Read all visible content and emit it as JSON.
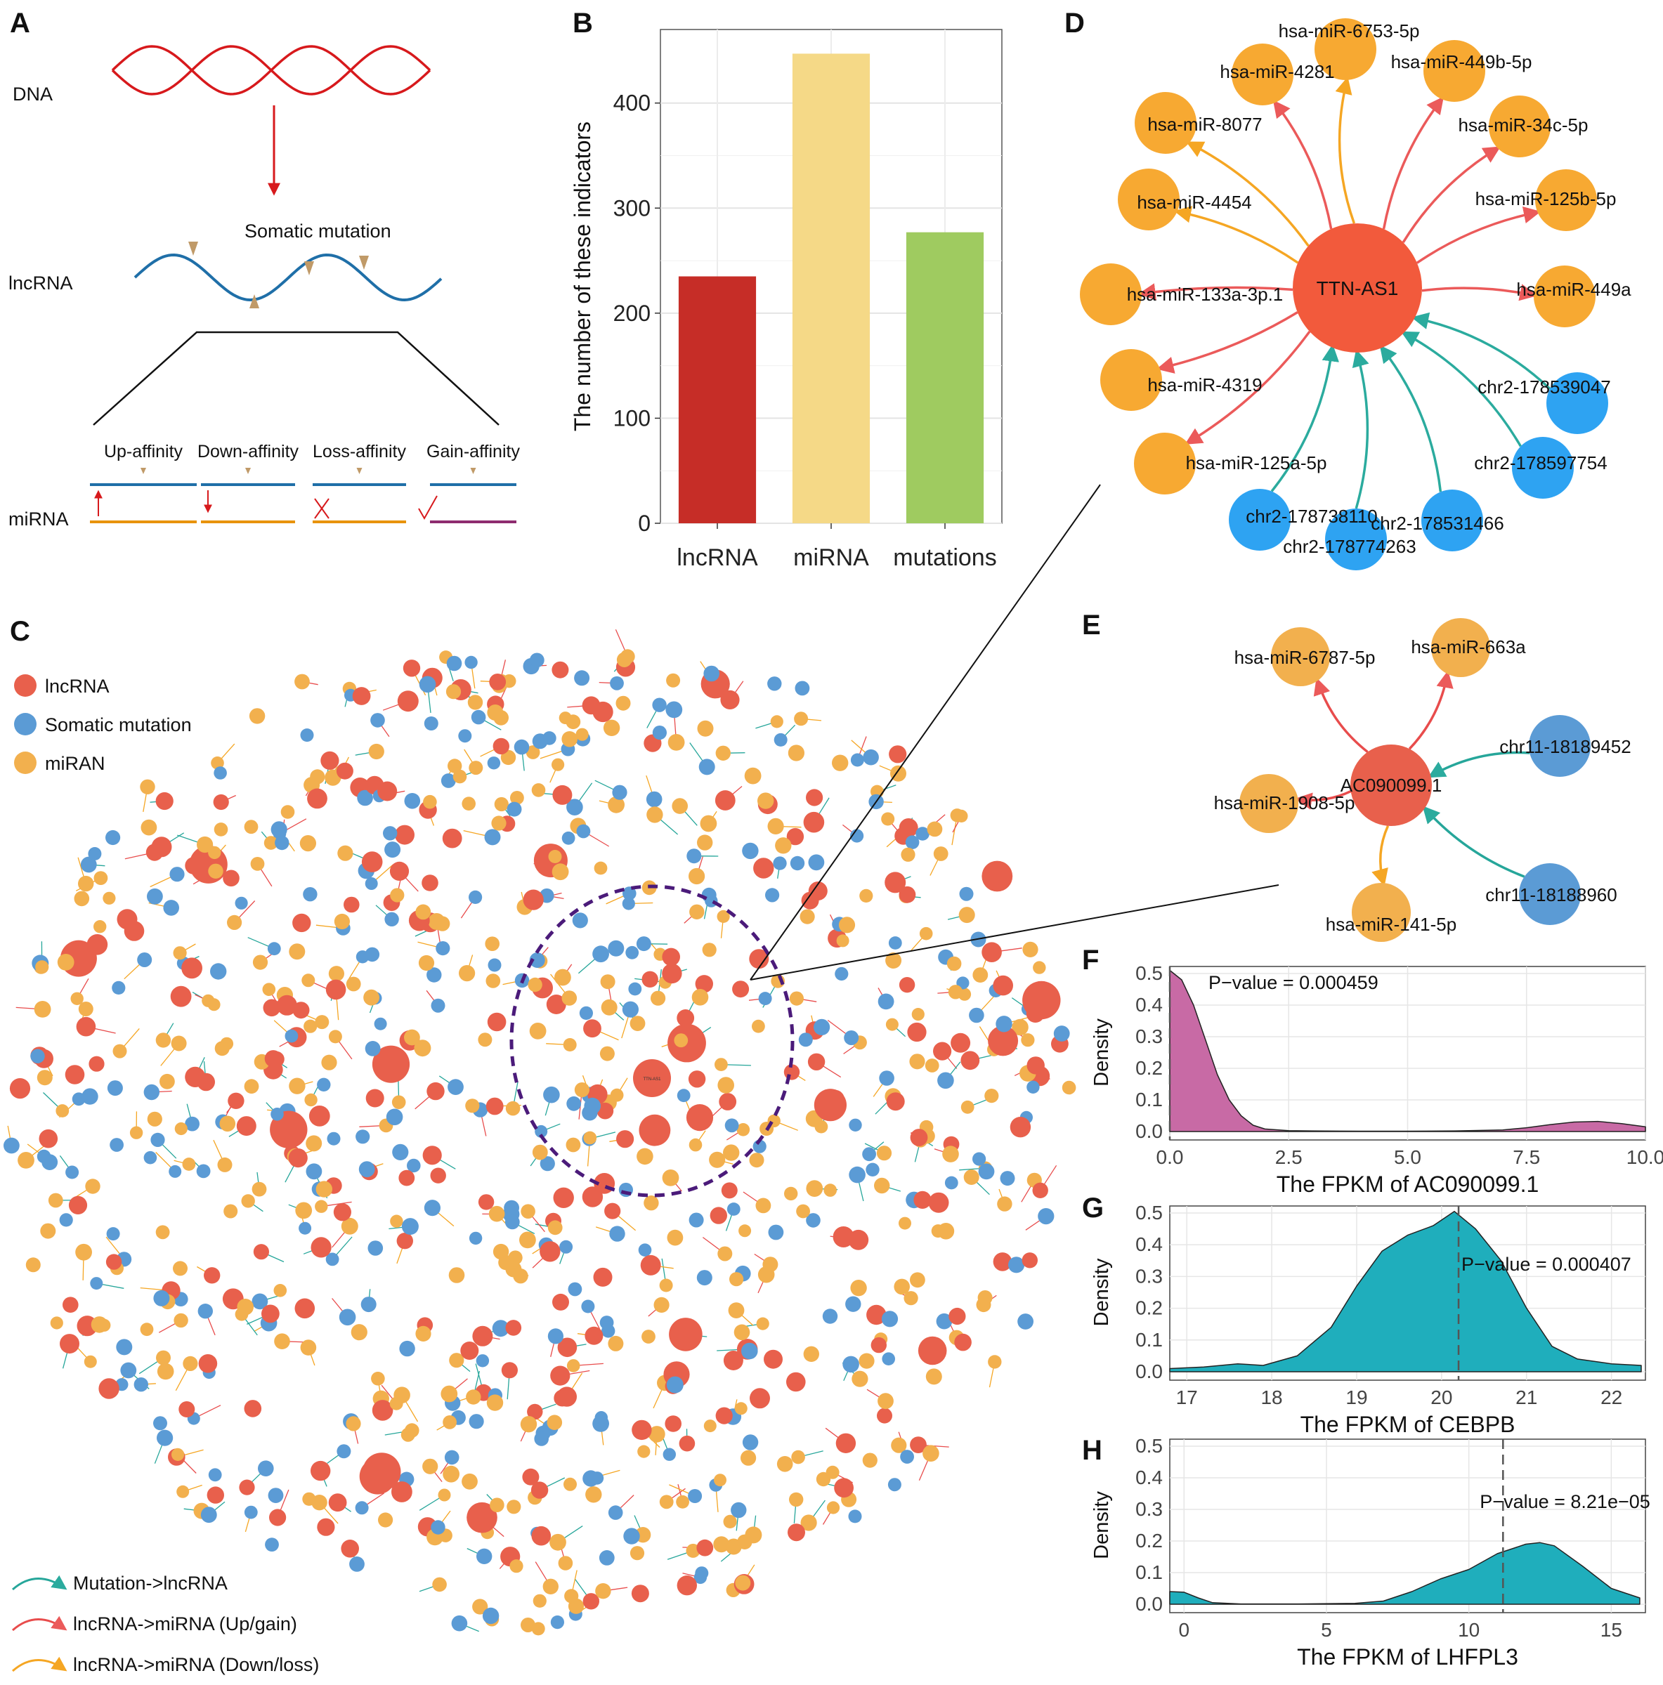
{
  "figure": {
    "panels": {
      "A": "A",
      "B": "B",
      "C": "C",
      "D": "D",
      "E": "E",
      "F": "F",
      "G": "G",
      "H": "H"
    }
  },
  "panel_a": {
    "dna_label": "DNA",
    "lncrna_label": "lncRNA",
    "mirna_label": "miRNA",
    "somatic_label": "Somatic mutation",
    "affinity_types": [
      "Up-affinity",
      "Down-affinity",
      "Loss-affinity",
      "Gain-affinity"
    ],
    "colors": {
      "dna": "#d7191c",
      "lncrna": "#1f6fa8",
      "mirna": "#e8930c",
      "gain": "#8e2c6f",
      "mark": "#c09a68"
    }
  },
  "panel_c": {
    "legend_nodes": [
      {
        "label": "lncRNA",
        "color": "#e8604c"
      },
      {
        "label": "Somatic mutation",
        "color": "#5b9bd5"
      },
      {
        "label": "miRAN",
        "color": "#f2b04e"
      }
    ],
    "legend_edges": [
      {
        "label": "Mutation->lncRNA",
        "color": "#26a69a"
      },
      {
        "label": "lncRNA->miRNA (Up/gain)",
        "color": "#e84c4c"
      },
      {
        "label": "lncRNA->miRNA (Down/loss)",
        "color": "#f5a623"
      }
    ],
    "center_label": "TTN-AS1",
    "highlight_color": "#4b1b7a"
  },
  "panel_d": {
    "center": {
      "label": "TTN-AS1",
      "color": "#f25a3c"
    },
    "mirnas": [
      {
        "label": "hsa-miR-4281",
        "edge": "up"
      },
      {
        "label": "hsa-miR-6753-5p",
        "edge": "down"
      },
      {
        "label": "hsa-miR-449b-5p",
        "edge": "up"
      },
      {
        "label": "hsa-miR-8077",
        "edge": "down"
      },
      {
        "label": "hsa-miR-34c-5p",
        "edge": "up"
      },
      {
        "label": "hsa-miR-4454",
        "edge": "down"
      },
      {
        "label": "hsa-miR-125b-5p",
        "edge": "up"
      },
      {
        "label": "hsa-miR-133a-3p.1",
        "edge": "up"
      },
      {
        "label": "hsa-miR-449a",
        "edge": "up"
      },
      {
        "label": "hsa-miR-4319",
        "edge": "up"
      },
      {
        "label": "hsa-miR-125a-5p",
        "edge": "up"
      }
    ],
    "mutations": [
      {
        "label": "chr2-178539047"
      },
      {
        "label": "chr2-178597754"
      },
      {
        "label": "chr2-178531466"
      },
      {
        "label": "chr2-178738110"
      },
      {
        "label": "chr2-178774263"
      }
    ],
    "colors": {
      "mirna": "#f7a932",
      "mutation": "#2ea3f2",
      "up": "#eb5a5a",
      "down": "#f5a623",
      "mut_edge": "#2bab9e"
    }
  },
  "panel_e": {
    "center": {
      "label": "AC090099.1",
      "color": "#e8604c"
    },
    "mirnas": [
      {
        "label": "hsa-miR-6787-5p",
        "edge": "up"
      },
      {
        "label": "hsa-miR-663a",
        "edge": "up"
      },
      {
        "label": "hsa-miR-1908-5p",
        "edge": "up"
      },
      {
        "label": "hsa-miR-141-5p",
        "edge": "down"
      }
    ],
    "mutations": [
      {
        "label": "chr11-18189452"
      },
      {
        "label": "chr11-18188960"
      }
    ],
    "colors": {
      "mirna": "#f2b04e",
      "mutation": "#5b9bd5",
      "up": "#e84c4c",
      "down": "#f5a623",
      "mut_edge": "#26a69a"
    }
  },
  "chart_data": [
    {
      "id": "B",
      "type": "bar",
      "categories": [
        "lncRNA",
        "miRNA",
        "mutations"
      ],
      "values": [
        235,
        447,
        277
      ],
      "colors": [
        "#c62d27",
        "#f5d987",
        "#9fcb60"
      ],
      "ylabel": "The number of these indicators",
      "xlabel": "",
      "ylim": [
        0,
        470
      ],
      "yticks": [
        0,
        100,
        200,
        300,
        400
      ],
      "grid": true
    },
    {
      "id": "F",
      "type": "area",
      "xlabel": "The FPKM of AC090099.1",
      "ylabel": "Density",
      "xlim": [
        0,
        10
      ],
      "ylim": [
        0,
        0.5
      ],
      "xticks": [
        0.0,
        2.5,
        5.0,
        7.5,
        10.0
      ],
      "xtick_labels": [
        "0.0",
        "2.5",
        "5.0",
        "7.5",
        "10.0"
      ],
      "yticks": [
        0.0,
        0.1,
        0.2,
        0.3,
        0.4,
        0.5
      ],
      "ytick_labels": [
        "0.0",
        "0.1",
        "0.2",
        "0.3",
        "0.4",
        "0.5"
      ],
      "fill": "#c86aa5",
      "vline": 0.0,
      "annotation": "P−value = 0.000459",
      "x": [
        0,
        0.25,
        0.5,
        0.75,
        1.0,
        1.25,
        1.5,
        1.75,
        2.0,
        2.5,
        3.0,
        4.0,
        5.0,
        6.0,
        7.0,
        7.5,
        8.0,
        8.5,
        9.0,
        9.5,
        10.0
      ],
      "y": [
        0.51,
        0.48,
        0.4,
        0.29,
        0.18,
        0.1,
        0.05,
        0.02,
        0.008,
        0.003,
        0.002,
        0.001,
        0.001,
        0.002,
        0.005,
        0.012,
        0.022,
        0.03,
        0.032,
        0.025,
        0.015
      ]
    },
    {
      "id": "G",
      "type": "area",
      "xlabel": "The FPKM of CEBPB",
      "ylabel": "Density",
      "xlim": [
        16.8,
        22.4
      ],
      "ylim": [
        0,
        0.5
      ],
      "xticks": [
        17,
        18,
        19,
        20,
        21,
        22
      ],
      "xtick_labels": [
        "17",
        "18",
        "19",
        "20",
        "21",
        "22"
      ],
      "yticks": [
        0.0,
        0.1,
        0.2,
        0.3,
        0.4,
        0.5
      ],
      "ytick_labels": [
        "0.0",
        "0.1",
        "0.2",
        "0.3",
        "0.4",
        "0.5"
      ],
      "fill": "#1faebc",
      "vline": 20.2,
      "annotation": "P−value = 0.000407",
      "x": [
        16.8,
        17.2,
        17.6,
        17.9,
        18.3,
        18.7,
        19.0,
        19.3,
        19.6,
        19.9,
        20.15,
        20.4,
        20.7,
        21.0,
        21.3,
        21.6,
        22.0,
        22.35
      ],
      "y": [
        0.01,
        0.015,
        0.025,
        0.02,
        0.05,
        0.14,
        0.27,
        0.38,
        0.43,
        0.46,
        0.505,
        0.45,
        0.35,
        0.2,
        0.08,
        0.04,
        0.025,
        0.02
      ]
    },
    {
      "id": "H",
      "type": "area",
      "xlabel": "The FPKM of LHFPL3",
      "ylabel": "Density",
      "xlim": [
        -0.5,
        16.2
      ],
      "ylim": [
        0,
        0.5
      ],
      "xticks": [
        0,
        5,
        10,
        15
      ],
      "xtick_labels": [
        "0",
        "5",
        "10",
        "15"
      ],
      "yticks": [
        0.0,
        0.1,
        0.2,
        0.3,
        0.4,
        0.5
      ],
      "ytick_labels": [
        "0.0",
        "0.1",
        "0.2",
        "0.3",
        "0.4",
        "0.5"
      ],
      "fill": "#1faebc",
      "vline": 11.2,
      "annotation": "P−value = 8.21e−05",
      "x": [
        -0.5,
        0,
        0.5,
        1.0,
        2.0,
        4.0,
        6.0,
        7.0,
        8.0,
        9.0,
        10.0,
        11.0,
        12.0,
        12.5,
        13.0,
        14.0,
        15.0,
        16.0
      ],
      "y": [
        0.04,
        0.038,
        0.02,
        0.005,
        0.001,
        0.001,
        0.003,
        0.01,
        0.04,
        0.08,
        0.11,
        0.16,
        0.19,
        0.195,
        0.185,
        0.12,
        0.05,
        0.02
      ]
    }
  ]
}
